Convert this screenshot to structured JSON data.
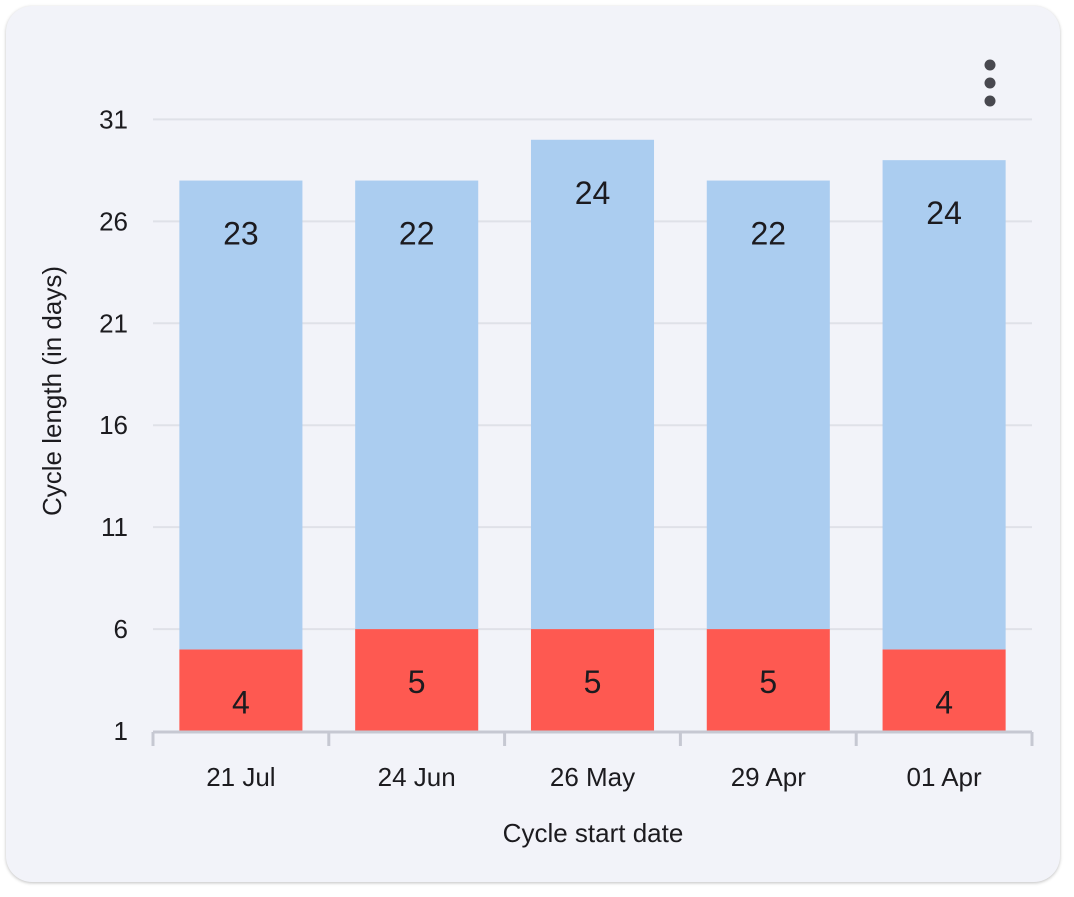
{
  "menu": {
    "icon": "more-vert-icon"
  },
  "colors": {
    "card_background": "#f2f3f9",
    "period_segment": "#fe5951",
    "cycle_segment": "#abcdf0",
    "gridline": "#dfe1e8",
    "axis": "#c6c8d2",
    "text": "#1c1b1f",
    "menu_dots": "#48484f"
  },
  "chart_data": {
    "type": "bar",
    "stacked": true,
    "title": "",
    "xlabel": "Cycle start date",
    "ylabel": "Cycle length (in days)",
    "categories": [
      "21 Jul",
      "24 Jun",
      "26 May",
      "29 Apr",
      "01 Apr"
    ],
    "series": [
      {
        "key": "period",
        "values": [
          4,
          5,
          5,
          5,
          4
        ],
        "color": "#fe5951"
      },
      {
        "key": "cycle",
        "values": [
          23,
          22,
          24,
          22,
          24
        ],
        "color": "#abcdf0"
      }
    ],
    "ylim": [
      1,
      32
    ],
    "yticks": [
      1,
      6,
      11,
      16,
      21,
      26,
      31
    ],
    "grid": true,
    "legend": "none"
  }
}
